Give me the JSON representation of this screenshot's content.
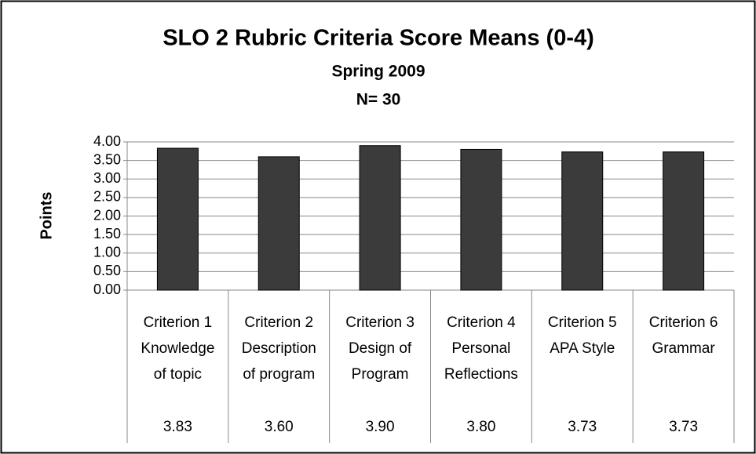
{
  "chart_data": {
    "type": "bar",
    "title": "SLO 2 Rubric Criteria Score Means (0-4)",
    "subtitle": "Spring 2009",
    "note": "N= 30",
    "ylabel": "Points",
    "categories": [
      [
        "Criterion 1",
        "Knowledge",
        "of topic"
      ],
      [
        "Criterion 2",
        "Description",
        "of program"
      ],
      [
        "Criterion 3",
        "Design of",
        "Program"
      ],
      [
        "Criterion 4",
        "Personal",
        "Reflections"
      ],
      [
        "Criterion 5",
        "APA Style"
      ],
      [
        "Criterion 6",
        "Grammar"
      ]
    ],
    "values": [
      3.83,
      3.6,
      3.9,
      3.8,
      3.73,
      3.73
    ],
    "value_labels": [
      "3.83",
      "3.60",
      "3.90",
      "3.80",
      "3.73",
      "3.73"
    ],
    "color": "#3b3b3b",
    "ylim": [
      0,
      4
    ],
    "yticks": [
      {
        "value": 0,
        "label": "0.00"
      },
      {
        "value": 0.5,
        "label": "0.50"
      },
      {
        "value": 1,
        "label": "1.00"
      },
      {
        "value": 1.5,
        "label": "1.50"
      },
      {
        "value": 2,
        "label": "2.00"
      },
      {
        "value": 2.5,
        "label": "2.50"
      },
      {
        "value": 3,
        "label": "3.00"
      },
      {
        "value": 3.5,
        "label": "3.50"
      },
      {
        "value": 4,
        "label": "4.00"
      }
    ],
    "grid": true
  }
}
